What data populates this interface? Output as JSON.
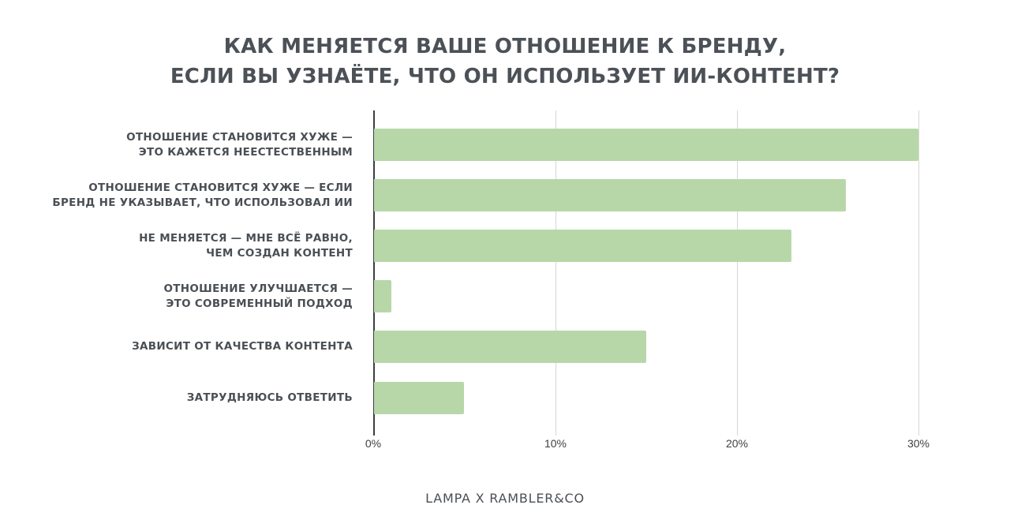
{
  "title": {
    "line1": "КАК МЕНЯЕТСЯ ВАШЕ ОТНОШЕНИЕ К БРЕНДУ,",
    "line2": "ЕСЛИ ВЫ УЗНАЁТЕ, ЧТО ОН ИСПОЛЬЗУЕТ ИИ-КОНТЕНТ?"
  },
  "footer": {
    "source": "LAMPA X RAMBLER&CO"
  },
  "colors": {
    "bar": "#b8d7a9",
    "text": "#4a4f55",
    "grid": "#d6d6d6",
    "axis": "#3c3f42"
  },
  "axis": {
    "ticks": [
      {
        "label": "0%",
        "value": 0
      },
      {
        "label": "10%",
        "value": 10
      },
      {
        "label": "20%",
        "value": 20
      },
      {
        "label": "30%",
        "value": 30
      }
    ]
  },
  "categories": [
    {
      "line1": "ОТНОШЕНИЕ СТАНОВИТСЯ ХУЖЕ —",
      "line2": "ЭТО КАЖЕТСЯ НЕЕСТЕСТВЕННЫМ",
      "value": 30
    },
    {
      "line1": "ОТНОШЕНИЕ СТАНОВИТСЯ ХУЖЕ — ЕСЛИ",
      "line2": "БРЕНД НЕ УКАЗЫВАЕТ, ЧТО ИСПОЛЬЗОВАЛ ИИ",
      "value": 26
    },
    {
      "line1": "НЕ МЕНЯЕТСЯ — МНЕ ВСЁ РАВНО,",
      "line2": "ЧЕМ СОЗДАН КОНТЕНТ",
      "value": 23
    },
    {
      "line1": "ОТНОШЕНИЕ УЛУЧШАЕТСЯ —",
      "line2": "ЭТО СОВРЕМЕННЫЙ ПОДХОД",
      "value": 1
    },
    {
      "line1": "ЗАВИСИТ ОТ КАЧЕСТВА КОНТЕНТА",
      "line2": "",
      "value": 15
    },
    {
      "line1": "ЗАТРУДНЯЮСЬ ОТВЕТИТЬ",
      "line2": "",
      "value": 5
    }
  ],
  "chart_data": {
    "type": "bar",
    "orientation": "horizontal",
    "title": "КАК МЕНЯЕТСЯ ВАШЕ ОТНОШЕНИЕ К БРЕНДУ, ЕСЛИ ВЫ УЗНАЁТЕ, ЧТО ОН ИСПОЛЬЗУЕТ ИИ-КОНТЕНТ?",
    "categories": [
      "ОТНОШЕНИЕ СТАНОВИТСЯ ХУЖЕ — ЭТО КАЖЕТСЯ НЕЕСТЕСТВЕННЫМ",
      "ОТНОШЕНИЕ СТАНОВИТСЯ ХУЖЕ — ЕСЛИ БРЕНД НЕ УКАЗЫВАЕТ, ЧТО ИСПОЛЬЗОВАЛ ИИ",
      "НЕ МЕНЯЕТСЯ — МНЕ ВСЁ РАВНО, ЧЕМ СОЗДАН КОНТЕНТ",
      "ОТНОШЕНИЕ УЛУЧШАЕТСЯ — ЭТО СОВРЕМЕННЫЙ ПОДХОД",
      "ЗАВИСИТ ОТ КАЧЕСТВА КОНТЕНТА",
      "ЗАТРУДНЯЮСЬ ОТВЕТИТЬ"
    ],
    "values": [
      30,
      26,
      23,
      1,
      15,
      5
    ],
    "unit": "%",
    "xlabel": "",
    "ylabel": "",
    "xlim": [
      0,
      30
    ],
    "xticks": [
      "0%",
      "10%",
      "20%",
      "30%"
    ],
    "grid": true,
    "legend": null,
    "source": "LAMPA X RAMBLER&CO"
  }
}
